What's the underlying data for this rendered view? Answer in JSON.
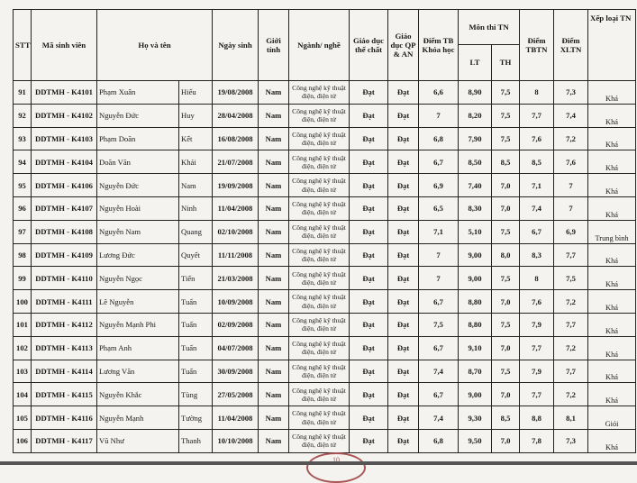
{
  "headers": {
    "stt": "STT",
    "student_id": "Mã sinh viên",
    "full_name": "Họ và tên",
    "dob": "Ngày sinh",
    "gender": "Giới tính",
    "major": "Ngành/ nghề",
    "pe": "Giáo dục thể chất",
    "defense": "Giáo dục QP & AN",
    "gpa": "Điểm TB Khóa học",
    "exam": "Môn thi TN",
    "lt": "LT",
    "th": "TH",
    "tbtn": "Điểm TBTN",
    "xltn": "Điểm XLTN",
    "rank": "Xếp loại TN"
  },
  "rows": [
    [
      "91",
      "DDTMH - K4101",
      "Phạm Xuân",
      "Hiếu",
      "19/08/2008",
      "Nam",
      "Công nghệ kỹ thuật điện, điện tử",
      "Đạt",
      "Đạt",
      "6,6",
      "8,90",
      "7,5",
      "8",
      "7,3",
      "Khá"
    ],
    [
      "92",
      "DDTMH - K4102",
      "Nguyễn Đức",
      "Huy",
      "28/04/2008",
      "Nam",
      "Công nghệ kỹ thuật điện, điện tử",
      "Đạt",
      "Đạt",
      "7",
      "8,20",
      "7,5",
      "7,7",
      "7,4",
      "Khá"
    ],
    [
      "93",
      "DDTMH - K4103",
      "Phạm Doãn",
      "Kết",
      "16/08/2008",
      "Nam",
      "Công nghệ kỹ thuật điện, điện tử",
      "Đạt",
      "Đạt",
      "6,8",
      "7,90",
      "7,5",
      "7,6",
      "7,2",
      "Khá"
    ],
    [
      "94",
      "DDTMH - K4104",
      "Doãn Văn",
      "Khải",
      "21/07/2008",
      "Nam",
      "Công nghệ kỹ thuật điện, điện tử",
      "Đạt",
      "Đạt",
      "6,7",
      "8,50",
      "8,5",
      "8,5",
      "7,6",
      "Khá"
    ],
    [
      "95",
      "DDTMH - K4106",
      "Nguyễn Đức",
      "Nam",
      "19/09/2008",
      "Nam",
      "Công nghệ kỹ thuật điện, điện tử",
      "Đạt",
      "Đạt",
      "6,9",
      "7,40",
      "7,0",
      "7,1",
      "7",
      "Khá"
    ],
    [
      "96",
      "DDTMH - K4107",
      "Nguyễn Hoài",
      "Ninh",
      "11/04/2008",
      "Nam",
      "Công nghệ kỹ thuật điện, điện tử",
      "Đạt",
      "Đạt",
      "6,5",
      "8,30",
      "7,0",
      "7,4",
      "7",
      "Khá"
    ],
    [
      "97",
      "DDTMH - K4108",
      "Nguyễn Nam",
      "Quang",
      "02/10/2008",
      "Nam",
      "Công nghệ kỹ thuật điện, điện tử",
      "Đạt",
      "Đạt",
      "7,1",
      "5,10",
      "7,5",
      "6,7",
      "6,9",
      "Trung bình"
    ],
    [
      "98",
      "DDTMH - K4109",
      "Lương Đức",
      "Quyết",
      "11/11/2008",
      "Nam",
      "Công nghệ kỹ thuật điện, điện tử",
      "Đạt",
      "Đạt",
      "7",
      "9,00",
      "8,0",
      "8,3",
      "7,7",
      "Khá"
    ],
    [
      "99",
      "DDTMH - K4110",
      "Nguyễn Ngọc",
      "Tiến",
      "21/03/2008",
      "Nam",
      "Công nghệ kỹ thuật điện, điện tử",
      "Đạt",
      "Đạt",
      "7",
      "9,00",
      "7,5",
      "8",
      "7,5",
      "Khá"
    ],
    [
      "100",
      "DDTMH - K4111",
      "Lê Nguyễn",
      "Tuấn",
      "10/09/2008",
      "Nam",
      "Công nghệ kỹ thuật điện, điện tử",
      "Đạt",
      "Đạt",
      "6,7",
      "8,80",
      "7,0",
      "7,6",
      "7,2",
      "Khá"
    ],
    [
      "101",
      "DDTMH - K4112",
      "Nguyễn Mạnh Phi",
      "Tuấn",
      "02/09/2008",
      "Nam",
      "Công nghệ kỹ thuật điện, điện tử",
      "Đạt",
      "Đạt",
      "7,5",
      "8,80",
      "7,5",
      "7,9",
      "7,7",
      "Khá"
    ],
    [
      "102",
      "DDTMH - K4113",
      "Phạm Anh",
      "Tuấn",
      "04/07/2008",
      "Nam",
      "Công nghệ kỹ thuật điện, điện tử",
      "Đạt",
      "Đạt",
      "6,7",
      "9,10",
      "7,0",
      "7,7",
      "7,2",
      "Khá"
    ],
    [
      "103",
      "DDTMH - K4114",
      "Lương Văn",
      "Tuấn",
      "30/09/2008",
      "Nam",
      "Công nghệ kỹ thuật điện, điện tử",
      "Đạt",
      "Đạt",
      "7,4",
      "8,70",
      "7,5",
      "7,9",
      "7,7",
      "Khá"
    ],
    [
      "104",
      "DDTMH - K4115",
      "Nguyễn Khắc",
      "Tùng",
      "27/05/2008",
      "Nam",
      "Công nghệ kỹ thuật điện, điện tử",
      "Đạt",
      "Đạt",
      "6,7",
      "9,00",
      "7,0",
      "7,7",
      "7,2",
      "Khá"
    ],
    [
      "105",
      "DDTMH - K4116",
      "Nguyễn Mạnh",
      "Tường",
      "11/04/2008",
      "Nam",
      "Công nghệ kỹ thuật điện, điện tử",
      "Đạt",
      "Đạt",
      "7,4",
      "9,30",
      "8,5",
      "8,8",
      "8,1",
      "Giỏi"
    ],
    [
      "106",
      "DDTMH - K4117",
      "Vũ Như",
      "Thanh",
      "10/10/2008",
      "Nam",
      "Công nghệ kỹ thuật điện, điện tử",
      "Đạt",
      "Đạt",
      "6,8",
      "9,50",
      "7,0",
      "7,8",
      "7,3",
      "Khá"
    ]
  ],
  "page_stamp": "10"
}
